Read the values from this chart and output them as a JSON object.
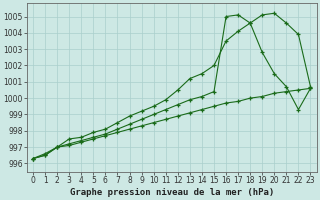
{
  "x": [
    0,
    1,
    2,
    3,
    4,
    5,
    6,
    7,
    8,
    9,
    10,
    11,
    12,
    13,
    14,
    15,
    16,
    17,
    18,
    19,
    20,
    21,
    22,
    23
  ],
  "line1": [
    996.3,
    996.5,
    997.0,
    997.5,
    997.6,
    997.9,
    998.1,
    998.5,
    998.9,
    999.2,
    999.5,
    999.9,
    1000.5,
    1001.2,
    1001.5,
    1002.0,
    1003.5,
    1004.1,
    1004.6,
    1005.1,
    1005.2,
    1004.6,
    1003.9,
    1000.7
  ],
  "line2": [
    996.3,
    996.5,
    997.0,
    997.2,
    997.4,
    997.6,
    997.8,
    998.1,
    998.4,
    998.7,
    999.0,
    999.3,
    999.6,
    999.9,
    1000.1,
    1000.4,
    1005.0,
    1005.1,
    1004.6,
    1002.8,
    1001.5,
    1000.7,
    999.3,
    1000.6
  ],
  "line3": [
    996.3,
    996.6,
    997.0,
    997.1,
    997.3,
    997.5,
    997.7,
    997.9,
    998.1,
    998.3,
    998.5,
    998.7,
    998.9,
    999.1,
    999.3,
    999.5,
    999.7,
    999.8,
    1000.0,
    1000.1,
    1000.3,
    1000.4,
    1000.5,
    1000.6
  ],
  "line_color": "#1a6b1a",
  "bg_color": "#cde8e4",
  "grid_color": "#aacfcc",
  "title": "Graphe pression niveau de la mer (hPa)",
  "ylim": [
    995.5,
    1005.8
  ],
  "xlim": [
    -0.5,
    23.5
  ],
  "yticks": [
    996,
    997,
    998,
    999,
    1000,
    1001,
    1002,
    1003,
    1004,
    1005
  ],
  "xticks": [
    0,
    1,
    2,
    3,
    4,
    5,
    6,
    7,
    8,
    9,
    10,
    11,
    12,
    13,
    14,
    15,
    16,
    17,
    18,
    19,
    20,
    21,
    22,
    23
  ],
  "title_fontsize": 6.5,
  "tick_fontsize": 5.5
}
